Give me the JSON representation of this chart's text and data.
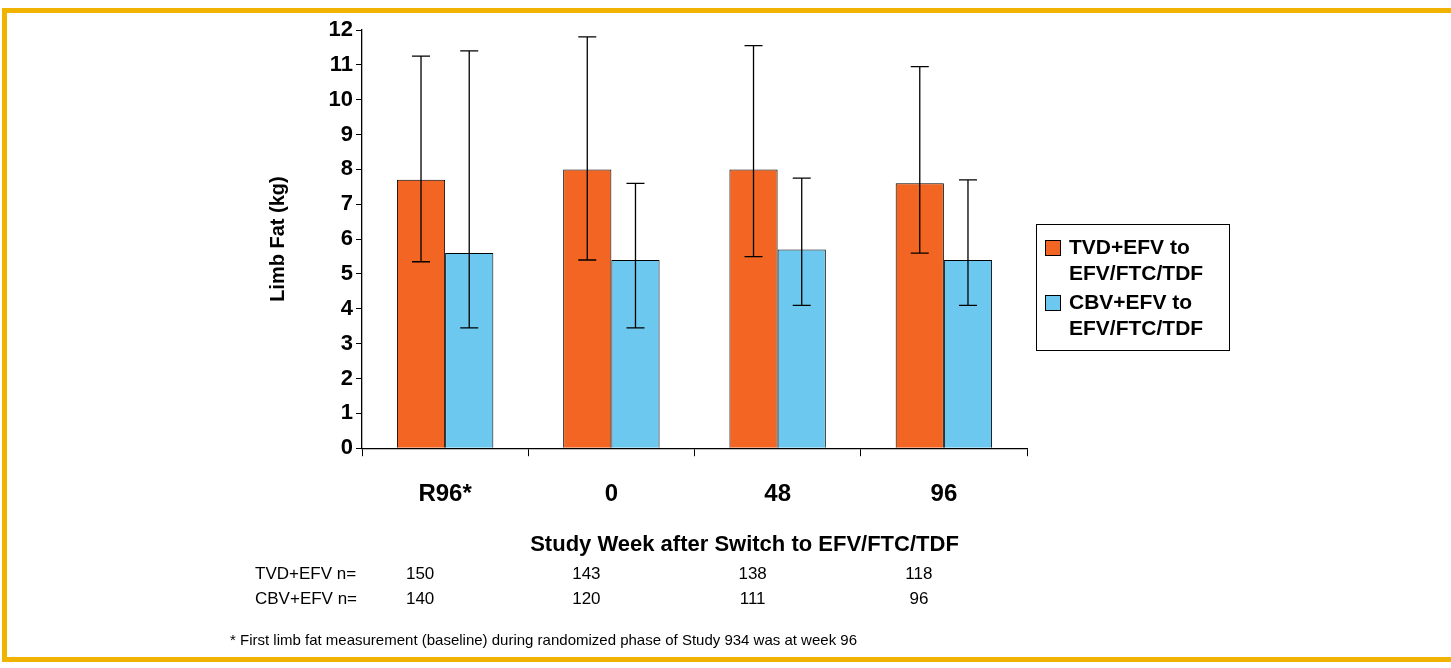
{
  "chart_data": {
    "type": "bar",
    "ylabel": "Limb Fat (kg)",
    "xlabel": "Study Week after Switch to EFV/FTC/TDF",
    "categories": [
      "R96*",
      "0",
      "48",
      "96"
    ],
    "series": [
      {
        "name": "TVD+EFV to EFV/FTC/TDF",
        "color": "#f26522",
        "values": [
          7.7,
          8.0,
          8.0,
          7.6
        ],
        "errors": [
          [
            5.35,
            11.25
          ],
          [
            5.4,
            11.8
          ],
          [
            5.5,
            11.55
          ],
          [
            5.6,
            10.95
          ]
        ]
      },
      {
        "name": "CBV+EFV to EFV/FTC/TDF",
        "color": "#6dc8ef",
        "values": [
          5.6,
          5.4,
          5.7,
          5.4
        ],
        "errors": [
          [
            3.45,
            11.4
          ],
          [
            3.45,
            7.6
          ],
          [
            4.1,
            7.75
          ],
          [
            4.1,
            7.7
          ]
        ]
      }
    ],
    "ylim": [
      0,
      12
    ],
    "yticks": [
      0,
      1,
      2,
      3,
      4,
      5,
      6,
      7,
      8,
      9,
      10,
      11,
      12
    ],
    "grid": false,
    "legend": "right",
    "annotations": [
      "TVD+EFV n=",
      "150",
      "143",
      "138",
      "118",
      "CBV+EFV n=",
      "140",
      "120",
      "111",
      "96",
      "* First limb fat measurement (baseline) during randomized phase of Study 934 was at week 96"
    ]
  }
}
